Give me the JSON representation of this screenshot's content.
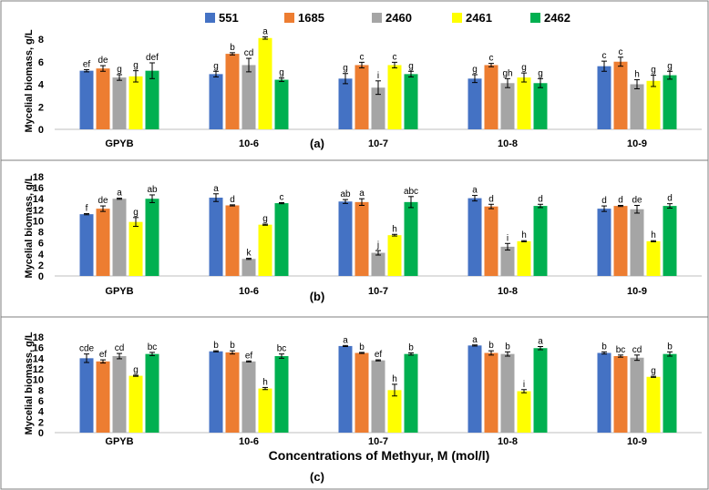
{
  "legend": [
    {
      "name": "551",
      "color": "#4472C4"
    },
    {
      "name": "1685",
      "color": "#ED7D31"
    },
    {
      "name": "2460",
      "color": "#A5A5A5"
    },
    {
      "name": "2461",
      "color": "#FFFF00"
    },
    {
      "name": "2462",
      "color": "#00B050"
    }
  ],
  "x_axis_title": "Concentrations of Methyur, M (mol/l)",
  "chart_data": [
    {
      "type": "bar",
      "panel_label": "(a)",
      "ylabel": "Mycelial biomass, g/L",
      "ylim": [
        0,
        8
      ],
      "yticks": [
        0,
        2,
        4,
        6,
        8
      ],
      "categories": [
        "GPYB",
        "10-6",
        "10-7",
        "10-8",
        "10-9"
      ],
      "series": [
        {
          "name": "551",
          "values": [
            5.2,
            4.9,
            4.5,
            4.5,
            5.6
          ],
          "errors": [
            0.1,
            0.25,
            0.45,
            0.35,
            0.45
          ],
          "letters": [
            "ef",
            "g",
            "g",
            "g",
            "c"
          ]
        },
        {
          "name": "1685",
          "values": [
            5.4,
            6.7,
            5.7,
            5.7,
            6.0
          ],
          "errors": [
            0.25,
            0.1,
            0.25,
            0.15,
            0.4
          ],
          "letters": [
            "de",
            "b",
            "c",
            "c",
            "c"
          ]
        },
        {
          "name": "2460",
          "values": [
            4.6,
            5.7,
            3.7,
            4.1,
            4.0
          ],
          "errors": [
            0.25,
            0.6,
            0.6,
            0.4,
            0.4
          ],
          "letters": [
            "g",
            "cd",
            "i",
            "gh",
            "h"
          ]
        },
        {
          "name": "2461",
          "values": [
            4.7,
            8.1,
            5.7,
            4.6,
            4.3
          ],
          "errors": [
            0.5,
            0.1,
            0.25,
            0.4,
            0.5
          ],
          "letters": [
            "g",
            "a",
            "c",
            "g",
            "g"
          ]
        },
        {
          "name": "2462",
          "values": [
            5.2,
            4.4,
            4.9,
            4.1,
            4.8
          ],
          "errors": [
            0.7,
            0.15,
            0.25,
            0.4,
            0.35
          ],
          "letters": [
            "def",
            "g",
            "g",
            "g",
            "g"
          ]
        }
      ]
    },
    {
      "type": "bar",
      "panel_label": "(b)",
      "ylabel": "Mycelial biomass, g/L",
      "ylim": [
        0,
        18
      ],
      "yticks": [
        0,
        2,
        4,
        6,
        8,
        10,
        12,
        14,
        16,
        18
      ],
      "categories": [
        "GPYB",
        "10-6",
        "10-7",
        "10-8",
        "10-9"
      ],
      "series": [
        {
          "name": "551",
          "values": [
            11.2,
            14.2,
            13.5,
            14.1,
            12.2
          ],
          "errors": [
            0.1,
            0.7,
            0.35,
            0.5,
            0.5
          ],
          "letters": [
            "f",
            "a",
            "ab",
            "a",
            "d"
          ]
        },
        {
          "name": "1685",
          "values": [
            12.2,
            12.8,
            13.4,
            12.6,
            12.7
          ],
          "errors": [
            0.5,
            0.1,
            0.6,
            0.4,
            0.1
          ],
          "letters": [
            "de",
            "d",
            "a",
            "d",
            "d"
          ]
        },
        {
          "name": "2460",
          "values": [
            14.0,
            3.1,
            4.2,
            5.3,
            12.1
          ],
          "errors": [
            0.1,
            0.1,
            0.4,
            0.6,
            0.7
          ],
          "letters": [
            "a",
            "k",
            "j",
            "i",
            "de"
          ]
        },
        {
          "name": "2461",
          "values": [
            9.8,
            9.3,
            7.4,
            6.3,
            6.3
          ],
          "errors": [
            0.8,
            0.1,
            0.15,
            0.1,
            0.1
          ],
          "letters": [
            "g",
            "g",
            "h",
            "h",
            "h"
          ]
        },
        {
          "name": "2462",
          "values": [
            14.0,
            13.2,
            13.4,
            12.7,
            12.7
          ],
          "errors": [
            0.7,
            0.1,
            1.0,
            0.3,
            0.4
          ],
          "letters": [
            "ab",
            "c",
            "abc",
            "d",
            "d"
          ]
        }
      ]
    },
    {
      "type": "bar",
      "panel_label": "(c)",
      "ylabel": "Mycelial biomass, g/L",
      "ylim": [
        0,
        18
      ],
      "yticks": [
        0,
        2,
        4,
        6,
        8,
        10,
        12,
        14,
        16,
        18
      ],
      "categories": [
        "GPYB",
        "10-6",
        "10-7",
        "10-8",
        "10-9"
      ],
      "series": [
        {
          "name": "551",
          "values": [
            14.0,
            15.3,
            16.3,
            16.4,
            15.0
          ],
          "errors": [
            0.8,
            0.1,
            0.1,
            0.1,
            0.2
          ],
          "letters": [
            "cde",
            "b",
            "a",
            "a",
            "b"
          ]
        },
        {
          "name": "1685",
          "values": [
            13.4,
            15.1,
            15.0,
            15.0,
            14.4
          ],
          "errors": [
            0.3,
            0.3,
            0.1,
            0.4,
            0.2
          ],
          "letters": [
            "ef",
            "b",
            "b",
            "b",
            "bc"
          ]
        },
        {
          "name": "2460",
          "values": [
            14.4,
            13.4,
            13.6,
            14.8,
            14.1
          ],
          "errors": [
            0.5,
            0.1,
            0.1,
            0.4,
            0.5
          ],
          "letters": [
            "cd",
            "ef",
            "ef",
            "b",
            "cd"
          ]
        },
        {
          "name": "2461",
          "values": [
            10.7,
            8.3,
            8.0,
            7.8,
            10.5
          ],
          "errors": [
            0.1,
            0.2,
            1.1,
            0.3,
            0.1
          ],
          "letters": [
            "g",
            "h",
            "h",
            "i",
            "g"
          ]
        },
        {
          "name": "2462",
          "values": [
            14.8,
            14.4,
            14.8,
            15.9,
            14.8
          ],
          "errors": [
            0.3,
            0.4,
            0.2,
            0.3,
            0.4
          ],
          "letters": [
            "bc",
            "bc",
            "b",
            "a",
            "b"
          ]
        }
      ]
    }
  ]
}
